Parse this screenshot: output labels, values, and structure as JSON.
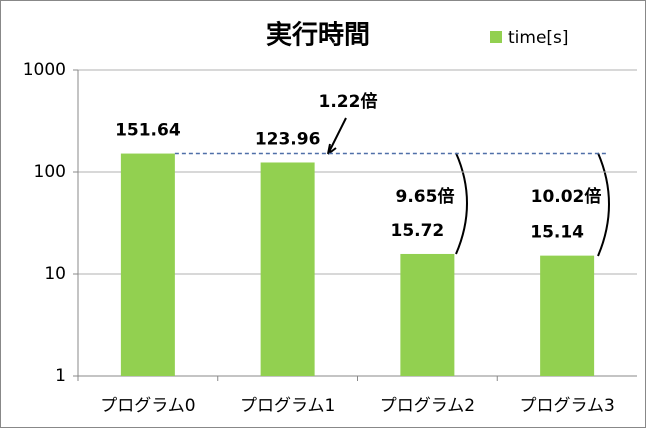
{
  "chart_data": {
    "type": "bar",
    "title": "実行時間",
    "categories": [
      "プログラム0",
      "プログラム1",
      "プログラム2",
      "プログラム3"
    ],
    "series": [
      {
        "name": "time[s]",
        "color": "#92d050",
        "values": [
          151.64,
          123.96,
          15.72,
          15.14
        ]
      }
    ],
    "ylim": [
      1,
      1000
    ],
    "yticks": [
      1,
      10,
      100,
      1000
    ],
    "yscale": "log",
    "grid": true,
    "annotations": [
      "1.22倍",
      "9.65倍",
      "10.02倍"
    ]
  }
}
